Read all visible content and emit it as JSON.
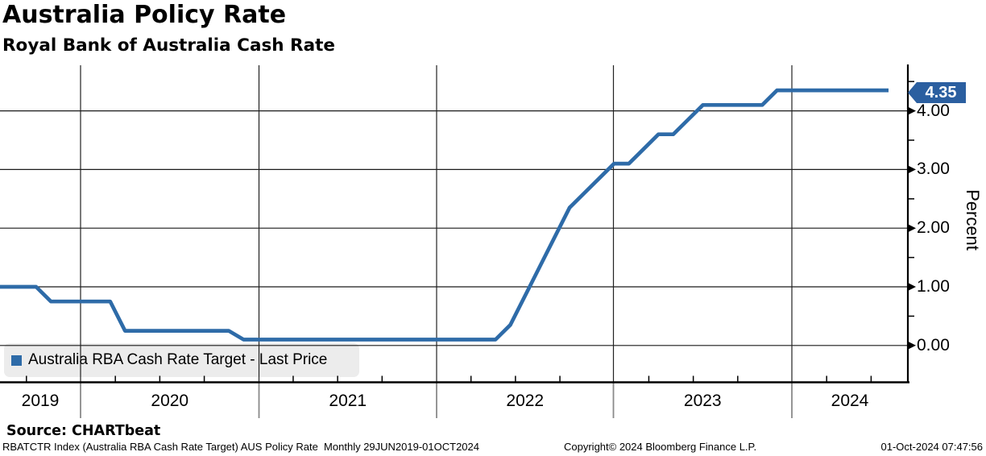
{
  "header": {
    "title": "Australia Policy Rate",
    "subtitle": "Royal Bank of Australia Cash Rate"
  },
  "legend": {
    "label": "Australia RBA Cash Rate Target - Last Price"
  },
  "chart_data": {
    "type": "line",
    "title": "Australia Policy Rate",
    "subtitle": "Royal Bank of Australia Cash Rate",
    "ylabel": "Percent",
    "xlabel": "",
    "grid": "on",
    "legend_position": "bottom-left",
    "x_year_labels": [
      "2019",
      "2020",
      "2021",
      "2022",
      "2023",
      "2024"
    ],
    "x_range": "29JUN2019-01OCT2024",
    "frequency": "Monthly",
    "ylim": [
      -0.6,
      4.8
    ],
    "y_ticks": [
      {
        "value": 0,
        "label": "0.00"
      },
      {
        "value": 1,
        "label": "1.00"
      },
      {
        "value": 2,
        "label": "2.00"
      },
      {
        "value": 3,
        "label": "3.00"
      },
      {
        "value": 4,
        "label": "4.00"
      }
    ],
    "y_minor_ticks": [
      0.5,
      1.5,
      2.5,
      3.5,
      4.5
    ],
    "series": [
      {
        "name": "Australia RBA Cash Rate Target - Last Price",
        "color": "#2e6ba8",
        "points": [
          [
            "2019-06",
            1.0
          ],
          [
            "2019-09",
            1.0
          ],
          [
            "2019-10",
            0.75
          ],
          [
            "2020-02",
            0.75
          ],
          [
            "2020-03",
            0.25
          ],
          [
            "2020-10",
            0.25
          ],
          [
            "2020-11",
            0.1
          ],
          [
            "2022-04",
            0.1
          ],
          [
            "2022-05",
            0.35
          ],
          [
            "2022-06",
            0.85
          ],
          [
            "2022-07",
            1.35
          ],
          [
            "2022-08",
            1.85
          ],
          [
            "2022-09",
            2.35
          ],
          [
            "2022-10",
            2.6
          ],
          [
            "2022-11",
            2.85
          ],
          [
            "2022-12",
            3.1
          ],
          [
            "2023-01",
            3.1
          ],
          [
            "2023-02",
            3.35
          ],
          [
            "2023-03",
            3.6
          ],
          [
            "2023-04",
            3.6
          ],
          [
            "2023-05",
            3.85
          ],
          [
            "2023-06",
            4.1
          ],
          [
            "2023-10",
            4.1
          ],
          [
            "2023-11",
            4.35
          ],
          [
            "2024-10",
            4.35
          ]
        ]
      }
    ],
    "last_price": {
      "label": "4.35",
      "value": 4.35
    }
  },
  "colors": {
    "line": "#2e6ba8",
    "badge_bg": "#2b5fa0",
    "badge_text": "#ffffff",
    "legend_bg": "#ececec",
    "grid": "#1a1a1a"
  },
  "footer": {
    "source": "Source: CHARTbeat",
    "description": "RBATCTR Index (Australia RBA Cash Rate Target) AUS Policy Rate  Monthly 29JUN2019-01OCT2024",
    "copyright": "Copyright© 2024 Bloomberg Finance L.P.",
    "timestamp": "01-Oct-2024 07:47:56"
  }
}
